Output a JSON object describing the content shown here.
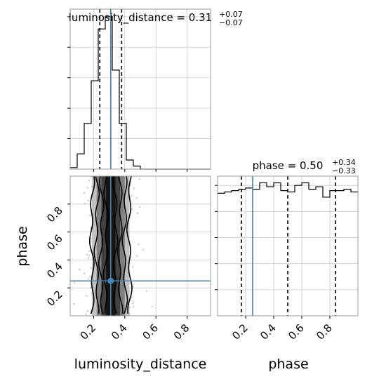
{
  "chart_data": {
    "type": "corner",
    "grid": true,
    "truth_color": "#4682b4",
    "parameters": [
      "luminosity_distance",
      "phase"
    ],
    "axis_labels": {
      "x_left": "luminosity_distance",
      "x_right": "phase",
      "y_left": "phase"
    },
    "ticks": {
      "luminosity_distance": [
        "0.2",
        "0.4",
        "0.6",
        "0.8"
      ],
      "phase": [
        "0.2",
        "0.4",
        "0.6",
        "0.8"
      ]
    },
    "luminosity_distance": {
      "title_name": "luminosity_distance = 0.31",
      "upper": "+0.07",
      "lower": "−0.07",
      "median": 0.31,
      "quantiles": [
        0.24,
        0.31,
        0.38
      ],
      "truth": 0.31,
      "range": [
        0.05,
        0.95
      ],
      "bin_edges": [
        0.05,
        0.095,
        0.14,
        0.185,
        0.23,
        0.275,
        0.32,
        0.365,
        0.41,
        0.455,
        0.5,
        0.545,
        0.59,
        0.635,
        0.68,
        0.725,
        0.77,
        0.815,
        0.86,
        0.905,
        0.95
      ],
      "counts": [
        0.01,
        0.1,
        0.3,
        0.58,
        0.92,
        1.0,
        0.65,
        0.3,
        0.06,
        0.02,
        0,
        0,
        0,
        0,
        0,
        0,
        0,
        0,
        0,
        0
      ]
    },
    "phase": {
      "title_name": "phase = 0.50",
      "upper": "+0.34",
      "lower": "−0.33",
      "median": 0.5,
      "quantiles": [
        0.17,
        0.5,
        0.84
      ],
      "truth": 0.25,
      "range": [
        0.0,
        1.0
      ],
      "bin_edges": [
        0.0,
        0.05,
        0.1,
        0.15,
        0.2,
        0.25,
        0.3,
        0.35,
        0.4,
        0.45,
        0.5,
        0.55,
        0.6,
        0.65,
        0.7,
        0.75,
        0.8,
        0.85,
        0.9,
        0.95,
        1.0
      ],
      "counts": [
        0.94,
        0.95,
        0.96,
        0.97,
        0.98,
        0.97,
        1.02,
        0.99,
        1.02,
        0.96,
        0.95,
        1.0,
        1.02,
        0.97,
        0.99,
        0.91,
        0.96,
        0.96,
        0.97,
        0.95
      ]
    },
    "joint": {
      "x_param": "luminosity_distance",
      "y_param": "phase",
      "x_range": [
        0.05,
        0.95
      ],
      "y_range": [
        0.0,
        1.0
      ],
      "center_x": 0.31,
      "spread_x": 0.07,
      "contour_x_half_widths": [
        0.03,
        0.06,
        0.09,
        0.12
      ],
      "contour_shades": [
        "#111111",
        "#3a3a3a",
        "#7a7a7a",
        "#bdbdbd"
      ],
      "truth": [
        0.31,
        0.25
      ]
    }
  }
}
